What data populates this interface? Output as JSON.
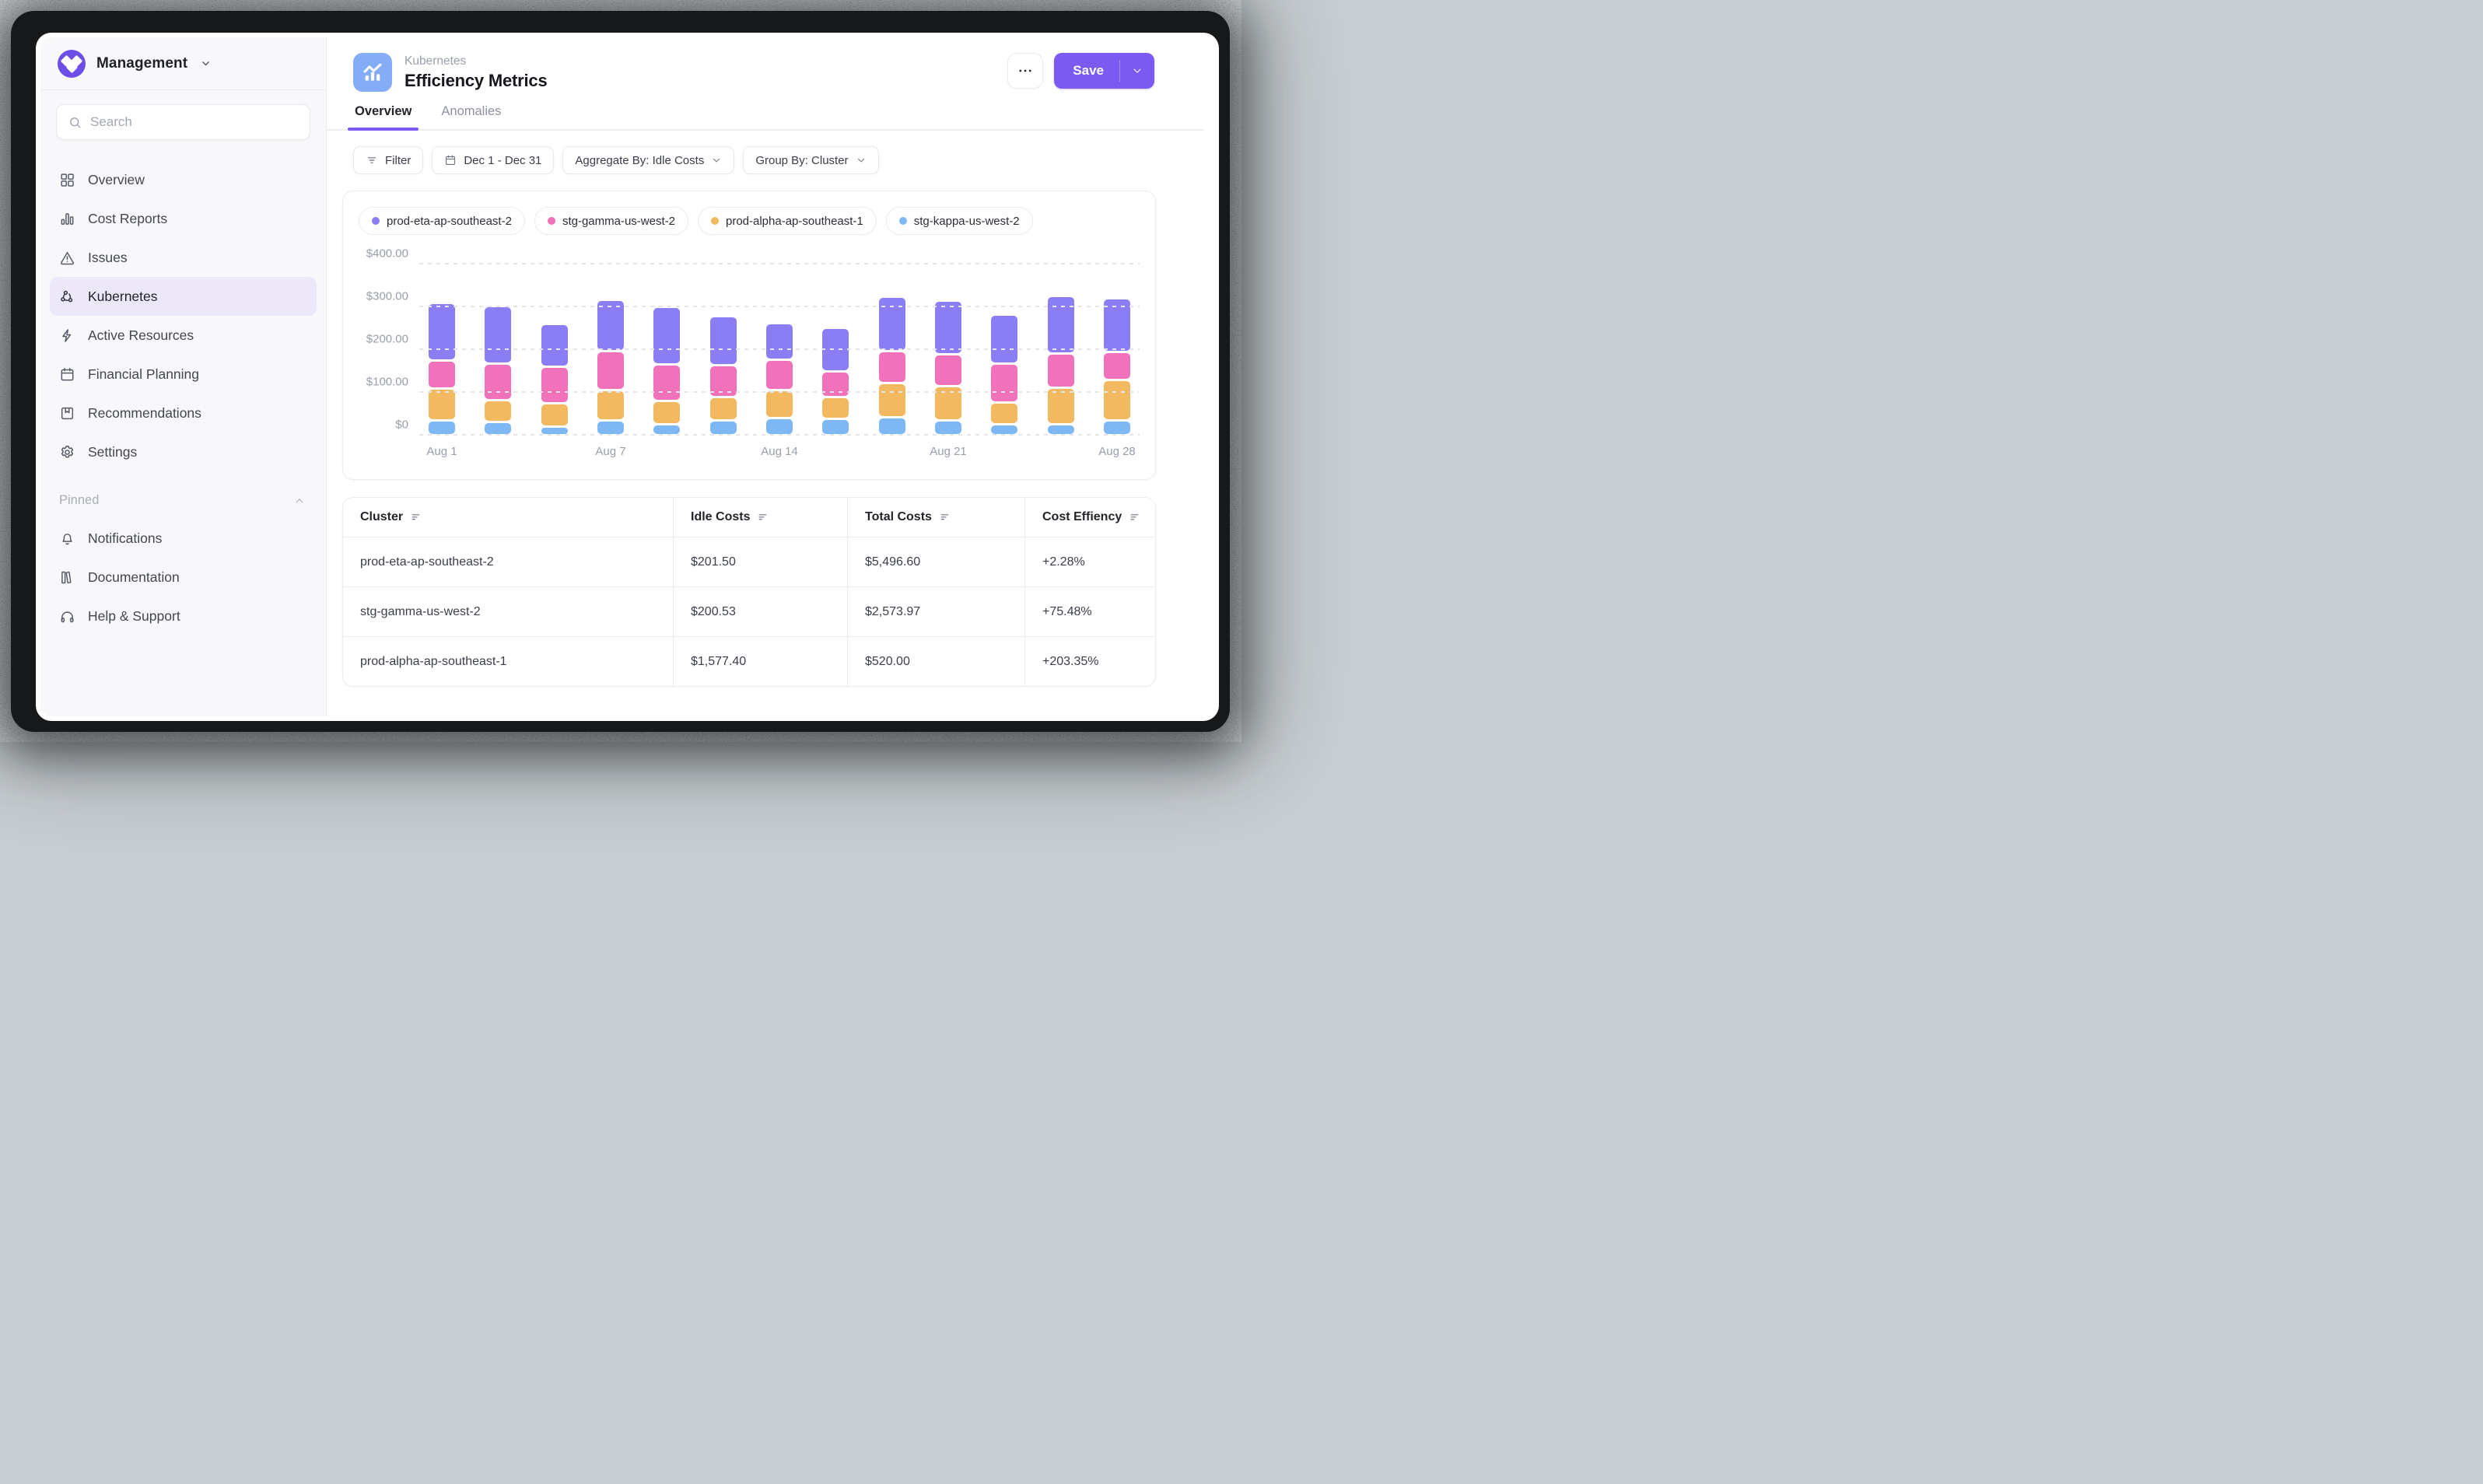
{
  "colors": {
    "accent": "#7a5af0",
    "logo_bg": "#6d4fe8",
    "header_icon_bg": "#85acf6",
    "sidebar_active_bg": "#ece8fa",
    "series_purple": "#8b7df3",
    "series_pink": "#f171bb",
    "series_orange": "#f2b960",
    "series_blue": "#7db8f4"
  },
  "sidebar": {
    "brand": {
      "label": "Management",
      "logo_icon": "brand-diamonds-icon",
      "caret_icon": "chevron-down-icon"
    },
    "search": {
      "placeholder": "Search",
      "icon": "search-icon"
    },
    "items": [
      {
        "label": "Overview",
        "icon": "grid-icon",
        "active": false
      },
      {
        "label": "Cost Reports",
        "icon": "bar-chart-icon",
        "active": false
      },
      {
        "label": "Issues",
        "icon": "warning-icon",
        "active": false
      },
      {
        "label": "Kubernetes",
        "icon": "nodes-icon",
        "active": true
      },
      {
        "label": "Active Resources",
        "icon": "lightning-icon",
        "active": false
      },
      {
        "label": "Financial Planning",
        "icon": "calendar-icon",
        "active": false
      },
      {
        "label": "Recommendations",
        "icon": "bookmark-icon",
        "active": false
      },
      {
        "label": "Settings",
        "icon": "gear-icon",
        "active": false
      }
    ],
    "pinned": {
      "label": "Pinned",
      "collapse_icon": "chevron-up-icon",
      "items": [
        {
          "label": "Notifications",
          "icon": "bell-icon"
        },
        {
          "label": "Documentation",
          "icon": "book-icon"
        },
        {
          "label": "Help & Support",
          "icon": "headphones-icon"
        }
      ]
    }
  },
  "header": {
    "eyebrow": "Kubernetes",
    "title": "Efficiency Metrics",
    "app_icon": "trend-chart-icon",
    "more_button_icon": "ellipsis-icon",
    "save_label": "Save"
  },
  "tabs": [
    {
      "label": "Overview",
      "active": true
    },
    {
      "label": "Anomalies",
      "active": false
    }
  ],
  "filters": [
    {
      "label": "Filter",
      "icon": "filter-icon",
      "chevron": false
    },
    {
      "label": "Dec 1 - Dec 31",
      "icon": "calendar-icon",
      "chevron": false
    },
    {
      "label": "Aggregate By: Idle Costs",
      "icon": null,
      "chevron": true
    },
    {
      "label": "Group By: Cluster",
      "icon": null,
      "chevron": true
    }
  ],
  "chart_data": {
    "type": "bar",
    "stacked": true,
    "title": "Idle costs by cluster over time",
    "bar_count": 13,
    "x_tick_labels": [
      "Aug 1",
      "Aug 7",
      "Aug 14",
      "Aug 21",
      "Aug 28"
    ],
    "x_tick_bar_indexes": [
      0,
      3,
      6,
      9,
      12
    ],
    "y_tick_labels": [
      "$400.00",
      "$300.00",
      "$200.00",
      "$100.00",
      "$0"
    ],
    "ylim": [
      0,
      400
    ],
    "grid": "dotted-horizontal",
    "legend_position": "top",
    "series": [
      {
        "name": "stg-kappa-us-west-2",
        "color": "#7db8f4",
        "values": [
          35,
          30,
          20,
          35,
          25,
          35,
          40,
          38,
          42,
          35,
          26,
          25,
          34
        ]
      },
      {
        "name": "prod-alpha-ap-southeast-1",
        "color": "#f2b960",
        "values": [
          75,
          50,
          55,
          70,
          55,
          55,
          65,
          50,
          80,
          80,
          50,
          85,
          95
        ]
      },
      {
        "name": "stg-gamma-us-west-2",
        "color": "#f171bb",
        "values": [
          65,
          85,
          85,
          90,
          85,
          75,
          70,
          60,
          75,
          75,
          90,
          80,
          65
        ]
      },
      {
        "name": "prod-eta-ap-southeast-2",
        "color": "#8b7df3",
        "values": [
          135,
          135,
          100,
          120,
          135,
          115,
          85,
          102,
          128,
          125,
          114,
          135,
          126
        ]
      }
    ],
    "legend": [
      {
        "name": "prod-eta-ap-southeast-2",
        "color": "#8b7df3"
      },
      {
        "name": "stg-gamma-us-west-2",
        "color": "#f171bb"
      },
      {
        "name": "prod-alpha-ap-southeast-1",
        "color": "#f2b960"
      },
      {
        "name": "stg-kappa-us-west-2",
        "color": "#7db8f4"
      }
    ]
  },
  "table": {
    "sort_icon": "sort-lines-icon",
    "columns": [
      "Cluster",
      "Idle Costs",
      "Total Costs",
      "Cost Effiency"
    ],
    "rows": [
      [
        "prod-eta-ap-southeast-2",
        "$201.50",
        "$5,496.60",
        "+2.28%"
      ],
      [
        "stg-gamma-us-west-2",
        "$200.53",
        "$2,573.97",
        "+75.48%"
      ],
      [
        "prod-alpha-ap-southeast-1",
        "$1,577.40",
        "$520.00",
        "+203.35%"
      ]
    ]
  }
}
